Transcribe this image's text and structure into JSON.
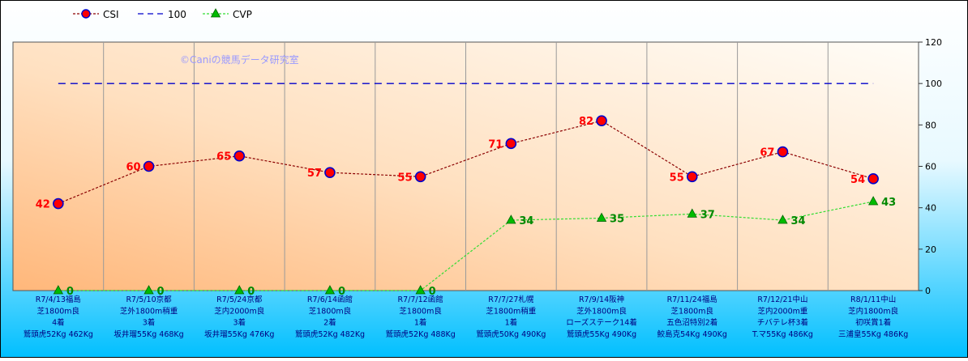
{
  "chart_data": {
    "type": "line",
    "watermark": "©Caniの競馬データ研究室",
    "legend": {
      "placement": "top-left",
      "entries": [
        {
          "name": "CSI",
          "color": "#8B0000",
          "marker_color": "#0000CC",
          "marker_fill": "#FF0000",
          "style": "dotted",
          "marker": "circle"
        },
        {
          "name": "100",
          "color": "#0000CC",
          "style": "dashed",
          "marker": "none"
        },
        {
          "name": "CVP",
          "color": "#33CC33",
          "marker_color": "#00AA00",
          "style": "dotted",
          "marker": "triangle"
        }
      ]
    },
    "x_labels": [
      [
        "R7/4/13福島",
        "芝1800m良",
        "4着",
        "鷲頭虎52Kg 462Kg"
      ],
      [
        "R7/5/10京都",
        "芝外1800m稍重",
        "3着",
        "坂井瑠55Kg 468Kg"
      ],
      [
        "R7/5/24京都",
        "芝内2000m良",
        "3着",
        "坂井瑠55Kg 476Kg"
      ],
      [
        "R7/6/14函館",
        "芝1800m良",
        "2着",
        "鷲頭虎52Kg 482Kg"
      ],
      [
        "R7/7/12函館",
        "芝1800m良",
        "1着",
        "鷲頭虎52Kg 488Kg"
      ],
      [
        "R7/7/27札幌",
        "芝1800m稍重",
        "1着",
        "鷲頭虎50Kg 490Kg"
      ],
      [
        "R7/9/14阪神",
        "芝外1800m良",
        "ローズステーク14着",
        "鷲頭虎55Kg 490Kg"
      ],
      [
        "R7/11/24福島",
        "芝1800m良",
        "五色沼特別2着",
        "鮫島克54Kg 490Kg"
      ],
      [
        "R7/12/21中山",
        "芝内2000m重",
        "チバテレ杯3着",
        "T.マ55Kg 486Kg"
      ],
      [
        "R8/1/11中山",
        "芝内1800m良",
        "初咲賞1着",
        "三浦皇55Kg 486Kg"
      ]
    ],
    "y_axis": {
      "min": 0,
      "max": 120,
      "ticks": [
        0,
        20,
        40,
        60,
        80,
        100,
        120
      ],
      "position": "right"
    },
    "grid": {
      "x": true,
      "y": false
    },
    "series": [
      {
        "name": "CSI",
        "values": [
          42,
          60,
          65,
          57,
          55,
          71,
          82,
          55,
          67,
          54
        ],
        "label_color": "#FF0000",
        "label_side": "left"
      },
      {
        "name": "100",
        "values": [
          100,
          100,
          100,
          100,
          100,
          100,
          100,
          100,
          100,
          100
        ]
      },
      {
        "name": "CVP",
        "values": [
          0,
          0,
          0,
          0,
          0,
          34,
          35,
          37,
          34,
          43
        ],
        "label_color": "#008800",
        "label_side": "right"
      }
    ],
    "colors": {
      "outer_bg_top": "#FFFFFF",
      "outer_bg_bottom": "#00C0FF",
      "plot_bg_light": "#FFF8EE",
      "plot_bg_dark": "#FFC48A",
      "watermark": "#9999FF",
      "label_text": "#000080"
    }
  }
}
